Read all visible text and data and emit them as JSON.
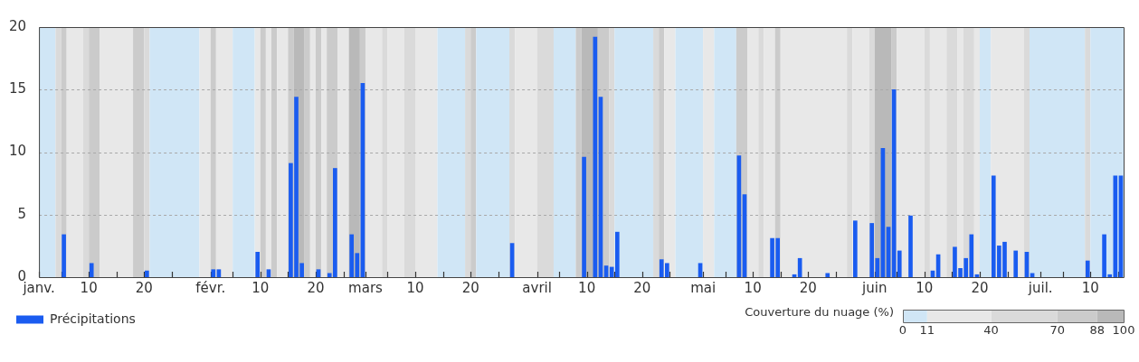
{
  "chart_data": {
    "type": "bar",
    "x": [
      "--01-05",
      "--01-10",
      "--01-20",
      "--02-01",
      "--02-02",
      "--02-09",
      "--02-11",
      "--02-15",
      "--02-16",
      "--02-17",
      "--02-20",
      "--02-22",
      "--02-23",
      "--02-26",
      "--02-27",
      "--02-28",
      "--03-27",
      "--04-09",
      "--04-11",
      "--04-12",
      "--04-13",
      "--04-14",
      "--04-15",
      "--04-23",
      "--04-24",
      "--04-30",
      "--05-07",
      "--05-08",
      "--05-13",
      "--05-14",
      "--05-17",
      "--05-18",
      "--05-23",
      "--05-28",
      "--05-31",
      "--06-01",
      "--06-02",
      "--06-03",
      "--06-04",
      "--06-05",
      "--06-07",
      "--06-11",
      "--06-12",
      "--06-15",
      "--06-16",
      "--06-17",
      "--06-18",
      "--06-19",
      "--06-22",
      "--06-23",
      "--06-24",
      "--06-26",
      "--06-28",
      "--06-29",
      "--07-09",
      "--07-12",
      "--07-13",
      "--07-14",
      "--07-15"
    ],
    "series": [
      {
        "name": "Précipitations",
        "color": "#1a5cf0",
        "values": [
          3.4,
          1.1,
          0.5,
          0.6,
          0.6,
          2.0,
          0.6,
          9.1,
          14.4,
          1.1,
          0.6,
          0.3,
          8.7,
          3.4,
          1.9,
          15.5,
          2.7,
          9.6,
          19.2,
          14.4,
          0.9,
          0.8,
          3.6,
          1.4,
          1.1,
          1.1,
          9.7,
          6.6,
          3.1,
          3.1,
          0.2,
          1.5,
          0.3,
          4.5,
          4.3,
          1.5,
          10.3,
          4.0,
          15.0,
          2.1,
          4.9,
          0.5,
          1.8,
          2.4,
          0.7,
          1.5,
          3.4,
          0.2,
          8.1,
          2.5,
          2.8,
          2.1,
          2.0,
          0.3,
          1.3,
          3.4,
          0.2,
          8.1,
          8.1
        ]
      }
    ],
    "xlim": [
      "--01-01",
      "--07-16"
    ],
    "xticks": [
      {
        "value": "--01-01",
        "label": "janv."
      },
      {
        "value": "--01-05",
        "label": null
      },
      {
        "value": "--01-10",
        "label": "10"
      },
      {
        "value": "--01-15",
        "label": null
      },
      {
        "value": "--01-20",
        "label": "20"
      },
      {
        "value": "--01-25",
        "label": null
      },
      {
        "value": "--02-01",
        "label": "févr."
      },
      {
        "value": "--02-05",
        "label": null
      },
      {
        "value": "--02-10",
        "label": "10"
      },
      {
        "value": "--02-15",
        "label": null
      },
      {
        "value": "--02-20",
        "label": "20"
      },
      {
        "value": "--02-25",
        "label": null
      },
      {
        "value": "--03-01",
        "label": "mars"
      },
      {
        "value": "--03-05",
        "label": null
      },
      {
        "value": "--03-10",
        "label": "10"
      },
      {
        "value": "--03-15",
        "label": null
      },
      {
        "value": "--03-20",
        "label": "20"
      },
      {
        "value": "--03-25",
        "label": null
      },
      {
        "value": "--04-01",
        "label": "avril"
      },
      {
        "value": "--04-05",
        "label": null
      },
      {
        "value": "--04-10",
        "label": "10"
      },
      {
        "value": "--04-15",
        "label": null
      },
      {
        "value": "--04-20",
        "label": "20"
      },
      {
        "value": "--04-25",
        "label": null
      },
      {
        "value": "--05-01",
        "label": "mai"
      },
      {
        "value": "--05-05",
        "label": null
      },
      {
        "value": "--05-10",
        "label": "10"
      },
      {
        "value": "--05-15",
        "label": null
      },
      {
        "value": "--05-20",
        "label": "20"
      },
      {
        "value": "--05-25",
        "label": null
      },
      {
        "value": "--06-01",
        "label": "juin"
      },
      {
        "value": "--06-05",
        "label": null
      },
      {
        "value": "--06-10",
        "label": "10"
      },
      {
        "value": "--06-15",
        "label": null
      },
      {
        "value": "--06-20",
        "label": "20"
      },
      {
        "value": "--06-25",
        "label": null
      },
      {
        "value": "--07-01",
        "label": "juil."
      },
      {
        "value": "--07-05",
        "label": null
      },
      {
        "value": "--07-10",
        "label": "10"
      },
      {
        "value": "--07-15",
        "label": null
      }
    ],
    "ylim": [
      0,
      20
    ],
    "yticks": [
      0,
      5,
      10,
      15,
      20
    ],
    "grid": "y",
    "legend": "bottom left",
    "clabel": "Couverture du nuage (%)",
    "clim": [
      0,
      100
    ],
    "cticks": [
      0,
      11,
      40,
      70,
      88,
      100
    ],
    "bands": [
      {
        "axis": "x",
        "from": "--01-01",
        "to": "--01-04",
        "color": "#d0e6f6"
      },
      {
        "axis": "x",
        "from": "--01-04",
        "to": "--01-05",
        "color": "#dadada"
      },
      {
        "axis": "x",
        "from": "--01-05",
        "to": "--01-06",
        "color": "#cbcbcb"
      },
      {
        "axis": "x",
        "from": "--01-06",
        "to": "--01-09",
        "color": "#e8e8e8"
      },
      {
        "axis": "x",
        "from": "--01-09",
        "to": "--01-10",
        "color": "#dadada"
      },
      {
        "axis": "x",
        "from": "--01-10",
        "to": "--01-12",
        "color": "#cbcbcb"
      },
      {
        "axis": "x",
        "from": "--01-12",
        "to": "--01-18",
        "color": "#e8e8e8"
      },
      {
        "axis": "x",
        "from": "--01-18",
        "to": "--01-20",
        "color": "#cbcbcb"
      },
      {
        "axis": "x",
        "from": "--01-20",
        "to": "--01-21",
        "color": "#dadada"
      },
      {
        "axis": "x",
        "from": "--01-21",
        "to": "--01-30",
        "color": "#d0e6f6"
      },
      {
        "axis": "x",
        "from": "--01-30",
        "to": "--02-01",
        "color": "#e8e8e8"
      },
      {
        "axis": "x",
        "from": "--02-01",
        "to": "--02-02",
        "color": "#cbcbcb"
      },
      {
        "axis": "x",
        "from": "--02-02",
        "to": "--02-05",
        "color": "#e8e8e8"
      },
      {
        "axis": "x",
        "from": "--02-05",
        "to": "--02-09",
        "color": "#d0e6f6"
      },
      {
        "axis": "x",
        "from": "--02-09",
        "to": "--02-10",
        "color": "#e8e8e8"
      },
      {
        "axis": "x",
        "from": "--02-10",
        "to": "--02-11",
        "color": "#cbcbcb"
      },
      {
        "axis": "x",
        "from": "--02-11",
        "to": "--02-12",
        "color": "#e8e8e8"
      },
      {
        "axis": "x",
        "from": "--02-12",
        "to": "--02-13",
        "color": "#cbcbcb"
      },
      {
        "axis": "x",
        "from": "--02-13",
        "to": "--02-15",
        "color": "#e8e8e8"
      },
      {
        "axis": "x",
        "from": "--02-15",
        "to": "--02-16",
        "color": "#cbcbcb"
      },
      {
        "axis": "x",
        "from": "--02-16",
        "to": "--02-18",
        "color": "#b9b9b9"
      },
      {
        "axis": "x",
        "from": "--02-18",
        "to": "--02-19",
        "color": "#cbcbcb"
      },
      {
        "axis": "x",
        "from": "--02-19",
        "to": "--02-20",
        "color": "#e8e8e8"
      },
      {
        "axis": "x",
        "from": "--02-20",
        "to": "--02-21",
        "color": "#cbcbcb"
      },
      {
        "axis": "x",
        "from": "--02-21",
        "to": "--02-22",
        "color": "#e8e8e8"
      },
      {
        "axis": "x",
        "from": "--02-22",
        "to": "--02-24",
        "color": "#cbcbcb"
      },
      {
        "axis": "x",
        "from": "--02-24",
        "to": "--02-26",
        "color": "#e8e8e8"
      },
      {
        "axis": "x",
        "from": "--02-26",
        "to": "--02-28",
        "color": "#b9b9b9"
      },
      {
        "axis": "x",
        "from": "--02-28",
        "to": "--03-01",
        "color": "#cbcbcb"
      },
      {
        "axis": "x",
        "from": "--03-01",
        "to": "--03-04",
        "color": "#e8e8e8"
      },
      {
        "axis": "x",
        "from": "--03-04",
        "to": "--03-05",
        "color": "#dadada"
      },
      {
        "axis": "x",
        "from": "--03-05",
        "to": "--03-08",
        "color": "#e8e8e8"
      },
      {
        "axis": "x",
        "from": "--03-08",
        "to": "--03-10",
        "color": "#dadada"
      },
      {
        "axis": "x",
        "from": "--03-10",
        "to": "--03-14",
        "color": "#e8e8e8"
      },
      {
        "axis": "x",
        "from": "--03-14",
        "to": "--03-19",
        "color": "#d0e6f6"
      },
      {
        "axis": "x",
        "from": "--03-19",
        "to": "--03-20",
        "color": "#dadada"
      },
      {
        "axis": "x",
        "from": "--03-20",
        "to": "--03-21",
        "color": "#cbcbcb"
      },
      {
        "axis": "x",
        "from": "--03-21",
        "to": "--03-27",
        "color": "#d0e6f6"
      },
      {
        "axis": "x",
        "from": "--03-27",
        "to": "--03-28",
        "color": "#dadada"
      },
      {
        "axis": "x",
        "from": "--03-28",
        "to": "--04-01",
        "color": "#e8e8e8"
      },
      {
        "axis": "x",
        "from": "--04-01",
        "to": "--04-04",
        "color": "#dadada"
      },
      {
        "axis": "x",
        "from": "--04-04",
        "to": "--04-08",
        "color": "#d0e6f6"
      },
      {
        "axis": "x",
        "from": "--04-08",
        "to": "--04-09",
        "color": "#cbcbcb"
      },
      {
        "axis": "x",
        "from": "--04-09",
        "to": "--04-12",
        "color": "#b9b9b9"
      },
      {
        "axis": "x",
        "from": "--04-12",
        "to": "--04-14",
        "color": "#cbcbcb"
      },
      {
        "axis": "x",
        "from": "--04-14",
        "to": "--04-15",
        "color": "#dadada"
      },
      {
        "axis": "x",
        "from": "--04-15",
        "to": "--04-22",
        "color": "#d0e6f6"
      },
      {
        "axis": "x",
        "from": "--04-22",
        "to": "--04-23",
        "color": "#dadada"
      },
      {
        "axis": "x",
        "from": "--04-23",
        "to": "--04-24",
        "color": "#cbcbcb"
      },
      {
        "axis": "x",
        "from": "--04-24",
        "to": "--04-26",
        "color": "#e8e8e8"
      },
      {
        "axis": "x",
        "from": "--04-26",
        "to": "--05-01",
        "color": "#d0e6f6"
      },
      {
        "axis": "x",
        "from": "--05-01",
        "to": "--05-03",
        "color": "#e8e8e8"
      },
      {
        "axis": "x",
        "from": "--05-03",
        "to": "--05-07",
        "color": "#d0e6f6"
      },
      {
        "axis": "x",
        "from": "--05-07",
        "to": "--05-09",
        "color": "#cbcbcb"
      },
      {
        "axis": "x",
        "from": "--05-09",
        "to": "--05-11",
        "color": "#e8e8e8"
      },
      {
        "axis": "x",
        "from": "--05-11",
        "to": "--05-12",
        "color": "#dadada"
      },
      {
        "axis": "x",
        "from": "--05-12",
        "to": "--05-14",
        "color": "#e8e8e8"
      },
      {
        "axis": "x",
        "from": "--05-14",
        "to": "--05-15",
        "color": "#cbcbcb"
      },
      {
        "axis": "x",
        "from": "--05-15",
        "to": "--05-27",
        "color": "#e8e8e8"
      },
      {
        "axis": "x",
        "from": "--05-27",
        "to": "--05-28",
        "color": "#dadada"
      },
      {
        "axis": "x",
        "from": "--05-28",
        "to": "--05-31",
        "color": "#e8e8e8"
      },
      {
        "axis": "x",
        "from": "--05-31",
        "to": "--06-01",
        "color": "#dadada"
      },
      {
        "axis": "x",
        "from": "--06-01",
        "to": "--06-04",
        "color": "#b9b9b9"
      },
      {
        "axis": "x",
        "from": "--06-04",
        "to": "--06-05",
        "color": "#cbcbcb"
      },
      {
        "axis": "x",
        "from": "--06-05",
        "to": "--06-10",
        "color": "#e8e8e8"
      },
      {
        "axis": "x",
        "from": "--06-10",
        "to": "--06-11",
        "color": "#dadada"
      },
      {
        "axis": "x",
        "from": "--06-11",
        "to": "--06-14",
        "color": "#e8e8e8"
      },
      {
        "axis": "x",
        "from": "--06-14",
        "to": "--06-16",
        "color": "#dadada"
      },
      {
        "axis": "x",
        "from": "--06-16",
        "to": "--06-17",
        "color": "#e8e8e8"
      },
      {
        "axis": "x",
        "from": "--06-17",
        "to": "--06-19",
        "color": "#dadada"
      },
      {
        "axis": "x",
        "from": "--06-19",
        "to": "--06-20",
        "color": "#e8e8e8"
      },
      {
        "axis": "x",
        "from": "--06-20",
        "to": "--06-22",
        "color": "#d0e6f6"
      },
      {
        "axis": "x",
        "from": "--06-22",
        "to": "--06-28",
        "color": "#e8e8e8"
      },
      {
        "axis": "x",
        "from": "--06-28",
        "to": "--06-29",
        "color": "#dadada"
      },
      {
        "axis": "x",
        "from": "--06-29",
        "to": "--07-09",
        "color": "#d0e6f6"
      },
      {
        "axis": "x",
        "from": "--07-09",
        "to": "--07-10",
        "color": "#dadada"
      },
      {
        "axis": "x",
        "from": "--07-10",
        "to": "--07-16",
        "color": "#d0e6f6"
      }
    ]
  }
}
